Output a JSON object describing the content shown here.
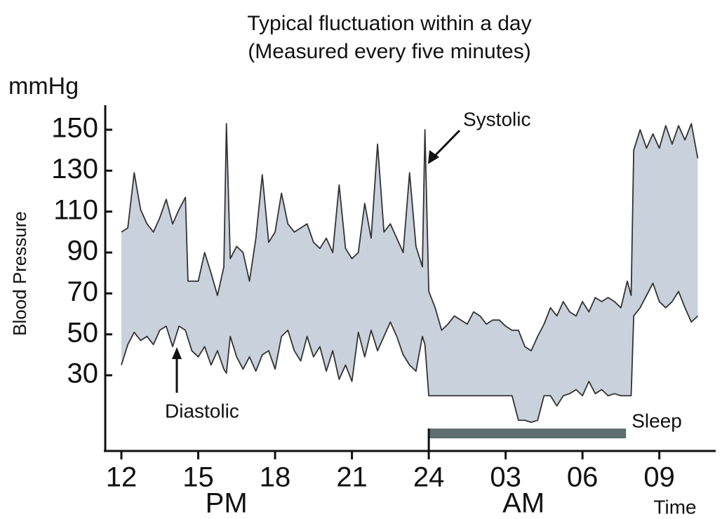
{
  "chart_data": {
    "type": "range-line",
    "title": "Typical fluctuation within a day",
    "subtitle": "(Measured every five minutes)",
    "y_unit": "mmHg",
    "y_label": "Blood Pressure",
    "x_label": "Time",
    "periods": [
      {
        "label": "PM",
        "at": 16.1
      },
      {
        "label": "AM",
        "at": 27.7
      }
    ],
    "x": [
      12,
      12.25,
      12.5,
      12.75,
      13,
      13.25,
      13.5,
      13.75,
      14,
      14.25,
      14.5,
      14.6,
      14.75,
      15,
      15.25,
      15.5,
      15.75,
      16,
      16.1,
      16.25,
      16.5,
      16.75,
      17,
      17.25,
      17.5,
      17.75,
      18,
      18.25,
      18.5,
      18.75,
      19,
      19.25,
      19.5,
      19.75,
      20,
      20.25,
      20.5,
      20.75,
      21,
      21.25,
      21.5,
      21.75,
      22,
      22.25,
      22.5,
      22.75,
      23,
      23.25,
      23.5,
      23.75,
      23.85,
      24,
      24.25,
      24.5,
      24.75,
      25,
      25.25,
      25.5,
      25.75,
      26,
      26.25,
      26.5,
      26.75,
      27,
      27.25,
      27.5,
      27.75,
      28,
      28.25,
      28.5,
      28.75,
      29,
      29.25,
      29.5,
      29.75,
      30,
      30.25,
      30.5,
      30.75,
      31,
      31.25,
      31.5,
      31.75,
      31.9,
      32,
      32.25,
      32.5,
      32.75,
      33,
      33.25,
      33.5,
      33.75,
      34,
      34.25,
      34.5
    ],
    "series": [
      {
        "name": "Systolic",
        "color": "#333333",
        "values": [
          100,
          102,
          129,
          111,
          104,
          100,
          107,
          116,
          104,
          111,
          117,
          76,
          76,
          76,
          90,
          80,
          69,
          83,
          153,
          87,
          93,
          90,
          76,
          97,
          128,
          95,
          100,
          119,
          104,
          100,
          102,
          104,
          95,
          92,
          97,
          90,
          123,
          92,
          87,
          90,
          114,
          97,
          143,
          100,
          104,
          97,
          90,
          129,
          93,
          83,
          150,
          71,
          63,
          52,
          55,
          59,
          57,
          55,
          61,
          59,
          55,
          57,
          57,
          54,
          52,
          52,
          44,
          42,
          49,
          55,
          63,
          59,
          66,
          61,
          59,
          66,
          61,
          68,
          66,
          68,
          66,
          63,
          76,
          69,
          140,
          150,
          141,
          148,
          141,
          152,
          143,
          152,
          145,
          153,
          136
        ]
      },
      {
        "name": "Diastolic",
        "color": "#333333",
        "values": [
          35,
          45,
          51,
          47,
          49,
          45,
          52,
          54,
          44,
          54,
          52,
          48,
          42,
          39,
          44,
          35,
          42,
          33,
          31,
          49,
          39,
          33,
          39,
          32,
          40,
          42,
          33,
          49,
          52,
          42,
          37,
          49,
          39,
          44,
          32,
          42,
          28,
          35,
          27,
          51,
          39,
          52,
          42,
          49,
          56,
          49,
          40,
          35,
          32,
          49,
          45,
          20,
          20,
          20,
          20,
          20,
          20,
          20,
          20,
          20,
          20,
          20,
          20,
          20,
          20,
          8,
          8,
          7,
          8,
          20,
          20,
          15,
          20,
          21,
          23,
          20,
          27,
          21,
          23,
          20,
          21,
          20,
          20,
          20,
          59,
          63,
          69,
          75,
          66,
          63,
          66,
          71,
          63,
          56,
          59
        ]
      }
    ],
    "band_color": "#c9d1dc",
    "sleep": {
      "label": "Sleep",
      "start": 24,
      "end": 31.7,
      "color": "#5f6e6e"
    },
    "xlim": [
      11.37,
      35.2
    ],
    "xticks": [
      12,
      15,
      18,
      21,
      24,
      {
        "value": 27,
        "label": "03"
      },
      {
        "value": 30,
        "label": "06"
      },
      {
        "value": 33,
        "label": "09"
      }
    ],
    "ylim": [
      -7,
      162
    ],
    "yticks": [
      30,
      50,
      70,
      90,
      110,
      130,
      150
    ]
  }
}
